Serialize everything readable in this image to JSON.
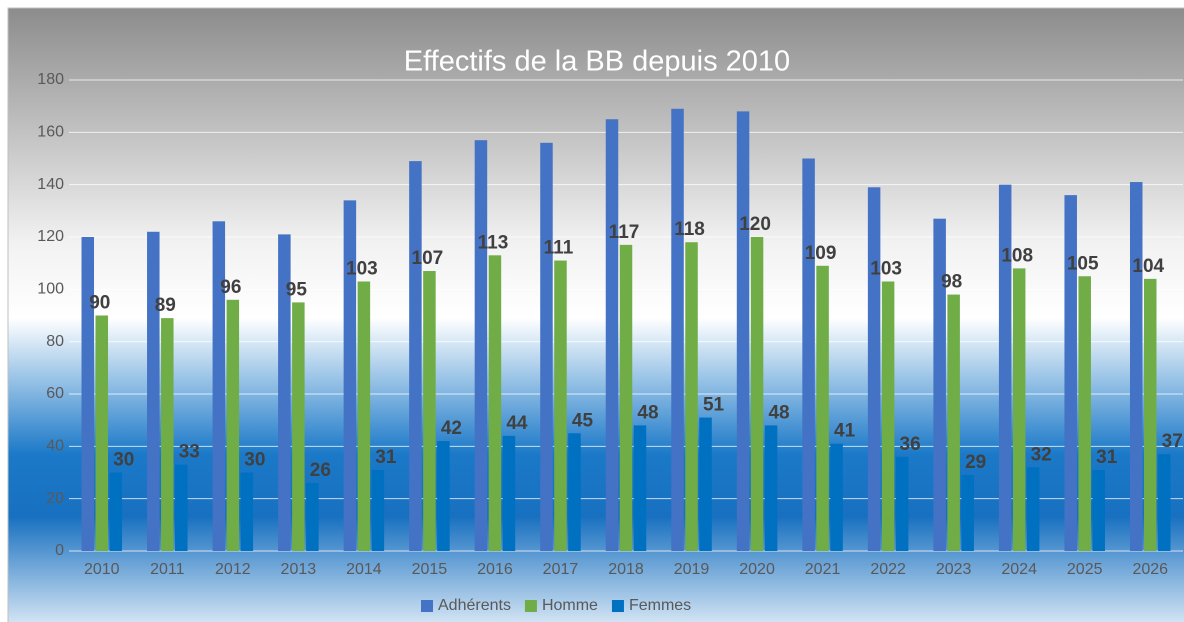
{
  "chart_data": {
    "type": "bar",
    "title": "Effectifs de la BB depuis 2010",
    "categories": [
      "2010",
      "2011",
      "2012",
      "2013",
      "2014",
      "2015",
      "2016",
      "2017",
      "2018",
      "2019",
      "2020",
      "2021",
      "2022",
      "2023",
      "2024",
      "2025",
      "2026"
    ],
    "series": [
      {
        "name": "Adhérents",
        "color": "#4472c4",
        "show_labels": false,
        "values": [
          120,
          122,
          126,
          121,
          134,
          149,
          157,
          156,
          165,
          169,
          168,
          150,
          139,
          127,
          140,
          136,
          141
        ]
      },
      {
        "name": "Homme",
        "color": "#70ad47",
        "show_labels": true,
        "values": [
          90,
          89,
          96,
          95,
          103,
          107,
          113,
          111,
          117,
          118,
          120,
          109,
          103,
          98,
          108,
          105,
          104
        ]
      },
      {
        "name": "Femmes",
        "color": "#0070c0",
        "show_labels": true,
        "values": [
          30,
          33,
          30,
          26,
          31,
          42,
          44,
          45,
          48,
          51,
          48,
          41,
          36,
          29,
          32,
          31,
          37
        ]
      }
    ],
    "ylim": [
      0,
      180
    ],
    "yticks": [
      0,
      20,
      40,
      60,
      80,
      100,
      120,
      140,
      160,
      180
    ],
    "grid": true,
    "legend": "bottom"
  }
}
